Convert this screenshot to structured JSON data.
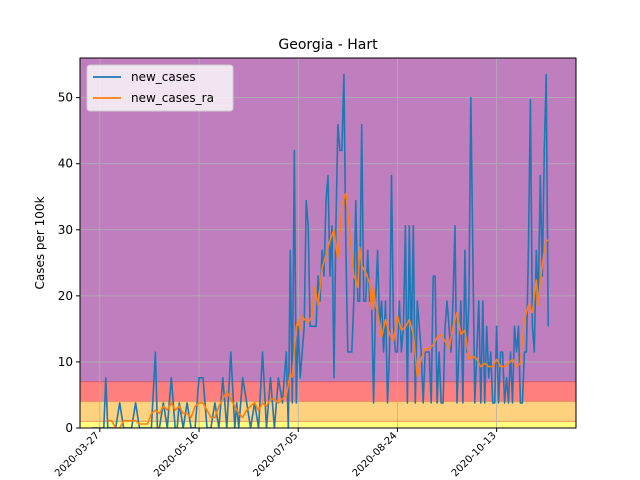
{
  "chart_data": {
    "type": "line",
    "title": "Georgia - Hart",
    "xlabel": "",
    "ylabel": "Cases per 100k",
    "ylim": [
      0,
      56
    ],
    "x_tick_labels": [
      "2020-03-27",
      "2020-05-16",
      "2020-07-05",
      "2020-08-24",
      "2020-10-13"
    ],
    "x_tick_days": [
      0,
      50,
      100,
      150,
      200
    ],
    "x_range_days": [
      -10,
      240
    ],
    "y_ticks": [
      0,
      10,
      20,
      30,
      40,
      50
    ],
    "grid": true,
    "legend_position": "top-left",
    "bands": [
      {
        "from": 0,
        "to": 1,
        "color": "#ffff80"
      },
      {
        "from": 1,
        "to": 4,
        "color": "#ffd27f"
      },
      {
        "from": 4,
        "to": 7,
        "color": "#ff7f7f"
      },
      {
        "from": 7,
        "to": 56,
        "color": "#bf7fbf"
      }
    ],
    "series": [
      {
        "name": "new_cases",
        "color": "#1f77b4",
        "x": [
          -4,
          0,
          2,
          3,
          4,
          6,
          8,
          10,
          12,
          14,
          16,
          18,
          20,
          22,
          24,
          26,
          28,
          29,
          30,
          32,
          34,
          36,
          38,
          39,
          40,
          42,
          44,
          46,
          48,
          50,
          52,
          54,
          56,
          58,
          60,
          62,
          64,
          66,
          68,
          69,
          70,
          72,
          74,
          76,
          78,
          80,
          82,
          84,
          86,
          88,
          90,
          92,
          94,
          95,
          96,
          97,
          98,
          99,
          100,
          101,
          102,
          103,
          104,
          105,
          106,
          107,
          108,
          109,
          110,
          111,
          112,
          113,
          114,
          115,
          116,
          117,
          118,
          119,
          120,
          121,
          122,
          123,
          124,
          125,
          126,
          127,
          128,
          129,
          130,
          131,
          132,
          133,
          134,
          135,
          136,
          137,
          138,
          139,
          140,
          141,
          142,
          143,
          144,
          145,
          146,
          147,
          148,
          149,
          150,
          151,
          152,
          153,
          154,
          155,
          156,
          157,
          158,
          159,
          160,
          161,
          162,
          163,
          164,
          165,
          166,
          167,
          168,
          169,
          170,
          171,
          172,
          173,
          174,
          175,
          176,
          177,
          178,
          179,
          180,
          181,
          182,
          183,
          184,
          185,
          186,
          187,
          188,
          189,
          190,
          191,
          192,
          193,
          194,
          195,
          196,
          197,
          198,
          199,
          200,
          201,
          202,
          203,
          204,
          205,
          206,
          207,
          208,
          209,
          210,
          211,
          212,
          213,
          214,
          215,
          216,
          217,
          218,
          219,
          220,
          221,
          222,
          223,
          224,
          225,
          226
        ],
        "values": [
          0,
          0,
          0,
          7.6,
          0,
          0,
          0,
          3.8,
          0,
          0,
          0,
          3.8,
          0,
          0,
          0,
          0,
          11.5,
          0,
          0,
          3.8,
          0,
          7.6,
          0,
          0,
          3.8,
          0,
          3.8,
          0,
          0,
          7.6,
          7.6,
          0,
          0,
          3.8,
          0,
          7.6,
          0,
          11.5,
          0,
          3.8,
          0,
          7.6,
          3.8,
          0,
          3.8,
          0,
          11.5,
          0,
          7.6,
          0,
          7.6,
          3.8,
          11.5,
          0,
          26.9,
          3.8,
          42,
          3.8,
          15.4,
          7.6,
          11.5,
          15.4,
          34.4,
          30.6,
          15.4,
          15.4,
          15.4,
          15.4,
          23,
          19.2,
          26.9,
          23,
          34.4,
          38.2,
          23,
          30.6,
          7.6,
          30.6,
          45.9,
          42,
          42,
          53.5,
          26.9,
          11.5,
          11.5,
          11.5,
          19.2,
          34.4,
          19.2,
          19.2,
          45.9,
          19.2,
          19.2,
          26.9,
          19.2,
          19.2,
          3.8,
          19.2,
          26.9,
          15.4,
          19.2,
          11.5,
          19.2,
          3.8,
          11.5,
          38.2,
          15.4,
          11.5,
          11.5,
          19.2,
          11.5,
          15.4,
          30.6,
          3.8,
          30.6,
          11.5,
          30.6,
          3.8,
          19.2,
          15.4,
          11.5,
          3.8,
          11.5,
          11.5,
          11.5,
          3.8,
          23,
          23,
          3.8,
          11.5,
          3.8,
          3.8,
          15.4,
          19.2,
          15.4,
          11.5,
          19.2,
          30.6,
          3.8,
          11.5,
          19.2,
          3.8,
          26.9,
          11.5,
          19.2,
          50,
          26.9,
          3.8,
          11.5,
          19.2,
          3.8,
          19.2,
          3.8,
          15.4,
          7.6,
          11.5,
          3.8,
          3.8,
          15.4,
          3.8,
          11.5,
          11.5,
          3.8,
          7.6,
          3.8,
          11.5,
          3.8,
          15.4,
          11.5,
          15.4,
          3.8,
          3.8,
          11.5,
          11.5,
          26.9,
          49.7,
          15.4,
          11.5,
          26.9,
          19.2,
          38.2,
          23,
          42,
          53.5,
          15.4
        ]
      },
      {
        "name": "new_cases_ra",
        "color": "#ff7f0e",
        "x": [
          4,
          6,
          8,
          10,
          12,
          14,
          16,
          18,
          20,
          22,
          24,
          26,
          28,
          30,
          32,
          34,
          36,
          38,
          40,
          42,
          44,
          46,
          48,
          50,
          52,
          54,
          56,
          58,
          60,
          62,
          64,
          66,
          68,
          70,
          72,
          74,
          76,
          78,
          80,
          82,
          84,
          86,
          88,
          90,
          92,
          94,
          96,
          97,
          98,
          99,
          100,
          101,
          102,
          103,
          104,
          105,
          106,
          107,
          108,
          109,
          110,
          112,
          114,
          116,
          118,
          119,
          120,
          121,
          122,
          124,
          126,
          127,
          128,
          129,
          130,
          131,
          132,
          134,
          136,
          137,
          138,
          139,
          140,
          142,
          144,
          146,
          148,
          150,
          152,
          154,
          156,
          158,
          160,
          162,
          164,
          166,
          168,
          170,
          172,
          174,
          176,
          178,
          180,
          182,
          184,
          186,
          188,
          190,
          192,
          194,
          196,
          198,
          200,
          202,
          204,
          206,
          208,
          210,
          212,
          214,
          216,
          218,
          220,
          221,
          222,
          223,
          224,
          225,
          226
        ],
        "values": [
          1.1,
          1.1,
          0,
          0,
          1.1,
          1.1,
          1.1,
          1.1,
          0.6,
          0.6,
          0.6,
          2.2,
          2.7,
          2.2,
          3.3,
          2.7,
          3.8,
          2.7,
          3.3,
          2.2,
          2.2,
          1.6,
          3.3,
          3.8,
          3.8,
          2.7,
          1.6,
          1.6,
          3.3,
          4.4,
          5.5,
          4.4,
          3.3,
          2.2,
          1.6,
          2.7,
          3.3,
          3.8,
          2.7,
          3.8,
          3.3,
          4.4,
          4.4,
          3.8,
          4.4,
          4.9,
          8.2,
          7.7,
          11.5,
          15.4,
          16.4,
          14.8,
          17,
          16.4,
          16.4,
          15.9,
          16.4,
          17,
          21.3,
          20.3,
          18.6,
          24.1,
          26.2,
          28.4,
          30,
          27.3,
          25.7,
          29.5,
          33.9,
          35.5,
          29.5,
          26.2,
          23,
          22.4,
          21.3,
          27.3,
          24.6,
          23.5,
          21.9,
          18,
          21.3,
          18.6,
          17.5,
          13.7,
          16.4,
          14.2,
          13.1,
          17,
          14.8,
          15.3,
          16.4,
          14.2,
          7.7,
          10.4,
          12,
          12,
          12.6,
          13.7,
          14.2,
          13.1,
          12,
          15.3,
          17.5,
          14.2,
          14.8,
          10.4,
          10.9,
          10.4,
          9.3,
          9.8,
          9.3,
          9.3,
          10.4,
          9.3,
          9.3,
          9.8,
          10.4,
          9.3,
          9.8,
          16.4,
          18.6,
          17.5,
          22.4,
          18.6,
          22.4,
          24.6,
          26.8,
          28.4,
          28.4
        ]
      }
    ]
  }
}
